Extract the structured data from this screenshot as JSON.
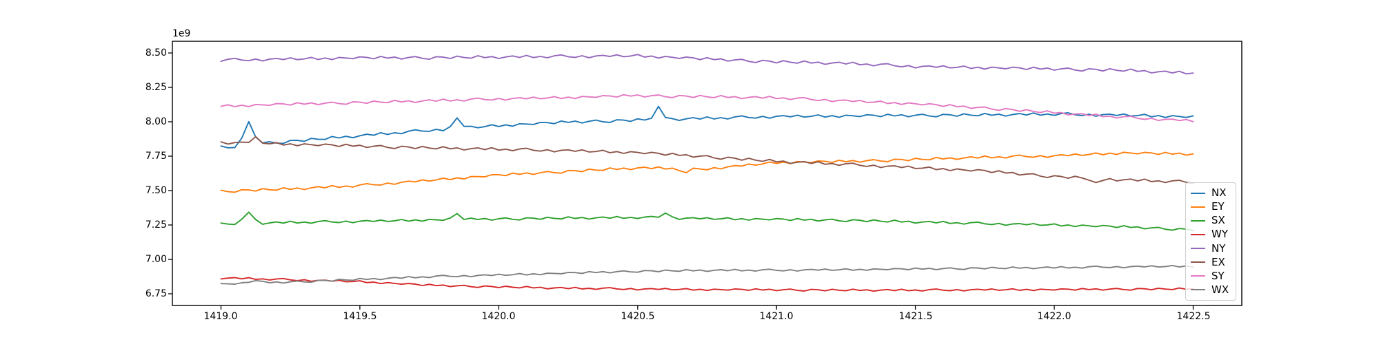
{
  "figure": {
    "background": "#ffffff"
  },
  "chart_data": {
    "type": "line",
    "title": "",
    "xlabel": "",
    "ylabel": "",
    "y_offset_label": "1e9",
    "grid": false,
    "legend_position": "inside lower right",
    "xlim": [
      1418.825,
      1422.675
    ],
    "ylim": [
      6.665,
      8.585
    ],
    "xticks": [
      1419.0,
      1419.5,
      1420.0,
      1420.5,
      1421.0,
      1421.5,
      1422.0,
      1422.5
    ],
    "xtick_labels": [
      "1419.0",
      "1419.5",
      "1420.0",
      "1420.5",
      "1421.0",
      "1421.5",
      "1422.0",
      "1422.5"
    ],
    "yticks": [
      6.75,
      7.0,
      7.25,
      7.5,
      7.75,
      8.0,
      8.25,
      8.5
    ],
    "ytick_labels": [
      "6.75",
      "7.00",
      "7.25",
      "7.50",
      "7.75",
      "8.00",
      "8.25",
      "8.50"
    ],
    "x_keypoints": [
      1419.0,
      1419.25,
      1419.5,
      1419.75,
      1420.0,
      1420.25,
      1420.5,
      1420.75,
      1421.0,
      1421.25,
      1421.5,
      1421.75,
      1422.0,
      1422.25,
      1422.5
    ],
    "samples_per_series": 141,
    "values_scale": 1000000000,
    "noise_table": [
      0.32,
      -0.58,
      0.85,
      -0.21,
      0.47,
      -0.77,
      0.12,
      0.68,
      -0.42,
      -0.95,
      0.55,
      0.25,
      -0.65,
      0.78,
      -0.08,
      -0.52,
      0.92,
      -0.28,
      0.38,
      -0.85,
      0.05,
      0.62,
      -0.35,
      0.88,
      -0.48,
      0.18,
      -0.72,
      0.45,
      0.95,
      -0.15,
      -0.62,
      0.35,
      -0.88,
      0.15,
      0.52,
      -0.25,
      0.72,
      -0.45,
      -0.05,
      0.82,
      -0.55,
      0.28,
      -0.75,
      0.48,
      0.08,
      -0.38,
      0.65
    ],
    "series": [
      {
        "name": "NX",
        "color": "#1f77b4",
        "values": [
          7.82,
          7.858,
          7.898,
          7.938,
          7.972,
          7.998,
          8.012,
          8.025,
          8.038,
          8.042,
          8.046,
          8.05,
          8.055,
          8.048,
          8.035
        ],
        "noise_amp": 0.012,
        "noise_offset": 0,
        "spikes": [
          [
            1419.05,
            -0.028,
            0.02
          ],
          [
            1419.1,
            0.16,
            0.025
          ],
          [
            1419.85,
            0.07,
            0.02
          ],
          [
            1420.575,
            0.085,
            0.02
          ]
        ]
      },
      {
        "name": "EY",
        "color": "#ff7f0e",
        "values": [
          7.495,
          7.512,
          7.536,
          7.574,
          7.612,
          7.64,
          7.664,
          7.658,
          7.703,
          7.712,
          7.726,
          7.742,
          7.752,
          7.773,
          7.765
        ],
        "noise_amp": 0.011,
        "noise_offset": 7,
        "spikes": [
          [
            1420.675,
            -0.035,
            0.02
          ]
        ]
      },
      {
        "name": "SX",
        "color": "#2ca02c",
        "values": [
          7.256,
          7.268,
          7.276,
          7.286,
          7.294,
          7.3,
          7.304,
          7.296,
          7.29,
          7.284,
          7.272,
          7.26,
          7.25,
          7.236,
          7.215
        ],
        "noise_amp": 0.01,
        "noise_offset": 13,
        "spikes": [
          [
            1419.1,
            0.085,
            0.022
          ],
          [
            1419.85,
            0.04,
            0.018
          ],
          [
            1420.6,
            0.042,
            0.018
          ]
        ]
      },
      {
        "name": "WY",
        "color": "#d62728",
        "values": [
          6.865,
          6.852,
          6.838,
          6.812,
          6.8,
          6.79,
          6.785,
          6.78,
          6.779,
          6.776,
          6.776,
          6.779,
          6.78,
          6.784,
          6.785
        ],
        "noise_amp": 0.008,
        "noise_offset": 19,
        "spikes": []
      },
      {
        "name": "NY",
        "color": "#9467bd",
        "values": [
          8.448,
          8.456,
          8.464,
          8.466,
          8.47,
          8.475,
          8.479,
          8.456,
          8.436,
          8.424,
          8.402,
          8.392,
          8.384,
          8.374,
          8.352
        ],
        "noise_amp": 0.012,
        "noise_offset": 26,
        "spikes": []
      },
      {
        "name": "EX",
        "color": "#8c564b",
        "values": [
          7.85,
          7.836,
          7.824,
          7.81,
          7.8,
          7.79,
          7.776,
          7.746,
          7.712,
          7.69,
          7.666,
          7.642,
          7.602,
          7.578,
          7.56
        ],
        "noise_amp": 0.012,
        "noise_offset": 31,
        "spikes": [
          [
            1419.125,
            0.04,
            0.02
          ],
          [
            1422.15,
            -0.04,
            0.02
          ]
        ]
      },
      {
        "name": "SY",
        "color": "#e377c2",
        "values": [
          8.113,
          8.128,
          8.14,
          8.152,
          8.166,
          8.176,
          8.19,
          8.182,
          8.174,
          8.152,
          8.13,
          8.1,
          8.066,
          8.032,
          8.006
        ],
        "noise_amp": 0.011,
        "noise_offset": 38,
        "spikes": []
      },
      {
        "name": "WX",
        "color": "#7f7f7f",
        "values": [
          6.82,
          6.836,
          6.854,
          6.874,
          6.886,
          6.9,
          6.914,
          6.92,
          6.921,
          6.925,
          6.93,
          6.936,
          6.94,
          6.946,
          6.95
        ],
        "noise_amp": 0.008,
        "noise_offset": 43,
        "spikes": [
          [
            1419.125,
            0.022,
            0.02
          ]
        ]
      }
    ]
  }
}
